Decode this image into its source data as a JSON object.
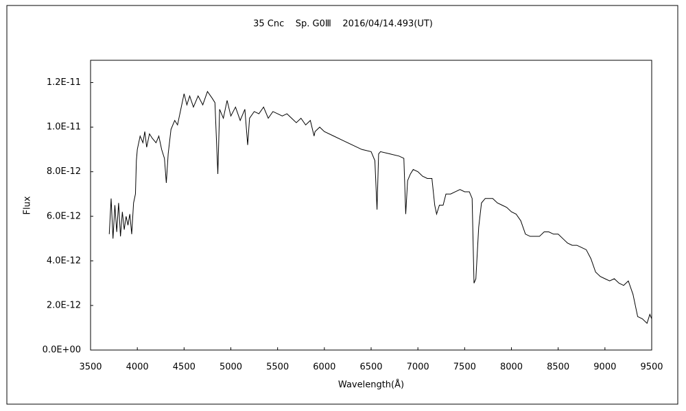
{
  "chart_data": {
    "type": "line",
    "title": "35 Cnc    Sp. G0Ⅲ    2016/04/14.493(UT)",
    "x_label": "Wavelength(Å)",
    "y_label": "Flux",
    "color": "#000000",
    "xlim": [
      3500,
      9500
    ],
    "xticks": [
      3500,
      4000,
      4500,
      5000,
      5500,
      6000,
      6500,
      7000,
      7500,
      8000,
      8500,
      9000,
      9500
    ],
    "ylim": [
      0,
      1.3e-11
    ],
    "yticks": [
      {
        "value": 0,
        "label": "0.0E+00"
      },
      {
        "value": 2e-12,
        "label": "2.0E-12"
      },
      {
        "value": 4e-12,
        "label": "4.0E-12"
      },
      {
        "value": 6e-12,
        "label": "6.0E-12"
      },
      {
        "value": 8e-12,
        "label": "8.0E-12"
      },
      {
        "value": 1e-11,
        "label": "1.0E-11"
      },
      {
        "value": 1.2e-11,
        "label": "1.2E-11"
      }
    ],
    "x": [
      3700,
      3720,
      3740,
      3760,
      3780,
      3800,
      3820,
      3840,
      3860,
      3880,
      3900,
      3920,
      3940,
      3960,
      3980,
      3990,
      4000,
      4030,
      4060,
      4080,
      4100,
      4130,
      4160,
      4200,
      4230,
      4260,
      4290,
      4310,
      4330,
      4360,
      4400,
      4430,
      4460,
      4500,
      4530,
      4560,
      4600,
      4650,
      4700,
      4750,
      4800,
      4830,
      4861,
      4880,
      4920,
      4960,
      5000,
      5050,
      5100,
      5150,
      5180,
      5200,
      5250,
      5300,
      5350,
      5400,
      5450,
      5500,
      5550,
      5600,
      5650,
      5700,
      5750,
      5800,
      5850,
      5890,
      5900,
      5950,
      6000,
      6100,
      6200,
      6300,
      6400,
      6500,
      6540,
      6563,
      6580,
      6600,
      6700,
      6800,
      6850,
      6870,
      6890,
      6920,
      6950,
      7000,
      7050,
      7100,
      7150,
      7180,
      7200,
      7230,
      7270,
      7300,
      7350,
      7400,
      7450,
      7500,
      7550,
      7580,
      7600,
      7620,
      7650,
      7680,
      7720,
      7800,
      7850,
      7900,
      7950,
      8000,
      8050,
      8100,
      8150,
      8200,
      8250,
      8300,
      8350,
      8400,
      8450,
      8500,
      8550,
      8600,
      8650,
      8700,
      8750,
      8800,
      8850,
      8900,
      8950,
      9000,
      9050,
      9100,
      9150,
      9200,
      9250,
      9300,
      9350,
      9400,
      9450,
      9480,
      9500
    ],
    "values": [
      5.2e-12,
      6.8e-12,
      5e-12,
      6.5e-12,
      5.3e-12,
      6.6e-12,
      5.1e-12,
      6.2e-12,
      5.4e-12,
      6e-12,
      5.6e-12,
      6.1e-12,
      5.2e-12,
      6.6e-12,
      7e-12,
      8.5e-12,
      9e-12,
      9.6e-12,
      9.3e-12,
      9.8e-12,
      9.1e-12,
      9.7e-12,
      9.5e-12,
      9.3e-12,
      9.6e-12,
      9e-12,
      8.6e-12,
      7.5e-12,
      8.8e-12,
      9.9e-12,
      1.03e-11,
      1.01e-11,
      1.07e-11,
      1.15e-11,
      1.1e-11,
      1.14e-11,
      1.09e-11,
      1.14e-11,
      1.1e-11,
      1.16e-11,
      1.13e-11,
      1.11e-11,
      7.9e-12,
      1.08e-11,
      1.04e-11,
      1.12e-11,
      1.05e-11,
      1.09e-11,
      1.03e-11,
      1.08e-11,
      9.2e-12,
      1.04e-11,
      1.07e-11,
      1.06e-11,
      1.09e-11,
      1.04e-11,
      1.07e-11,
      1.06e-11,
      1.05e-11,
      1.06e-11,
      1.04e-11,
      1.02e-11,
      1.04e-11,
      1.01e-11,
      1.03e-11,
      9.6e-12,
      9.8e-12,
      1e-11,
      9.8e-12,
      9.6e-12,
      9.4e-12,
      9.2e-12,
      9e-12,
      8.9e-12,
      8.5e-12,
      6.3e-12,
      8.8e-12,
      8.9e-12,
      8.8e-12,
      8.7e-12,
      8.6e-12,
      6.1e-12,
      7.6e-12,
      7.9e-12,
      8.1e-12,
      8e-12,
      7.8e-12,
      7.7e-12,
      7.7e-12,
      6.5e-12,
      6.1e-12,
      6.5e-12,
      6.5e-12,
      7e-12,
      7e-12,
      7.1e-12,
      7.2e-12,
      7.1e-12,
      7.1e-12,
      6.8e-12,
      3e-12,
      3.2e-12,
      5.5e-12,
      6.6e-12,
      6.8e-12,
      6.8e-12,
      6.6e-12,
      6.5e-12,
      6.4e-12,
      6.2e-12,
      6.1e-12,
      5.8e-12,
      5.2e-12,
      5.1e-12,
      5.1e-12,
      5.1e-12,
      5.3e-12,
      5.3e-12,
      5.2e-12,
      5.2e-12,
      5e-12,
      4.8e-12,
      4.7e-12,
      4.7e-12,
      4.6e-12,
      4.5e-12,
      4.1e-12,
      3.5e-12,
      3.3e-12,
      3.2e-12,
      3.1e-12,
      3.2e-12,
      3e-12,
      2.9e-12,
      3.1e-12,
      2.5e-12,
      1.5e-12,
      1.4e-12,
      1.2e-12,
      1.6e-12,
      1.4e-12
    ]
  }
}
